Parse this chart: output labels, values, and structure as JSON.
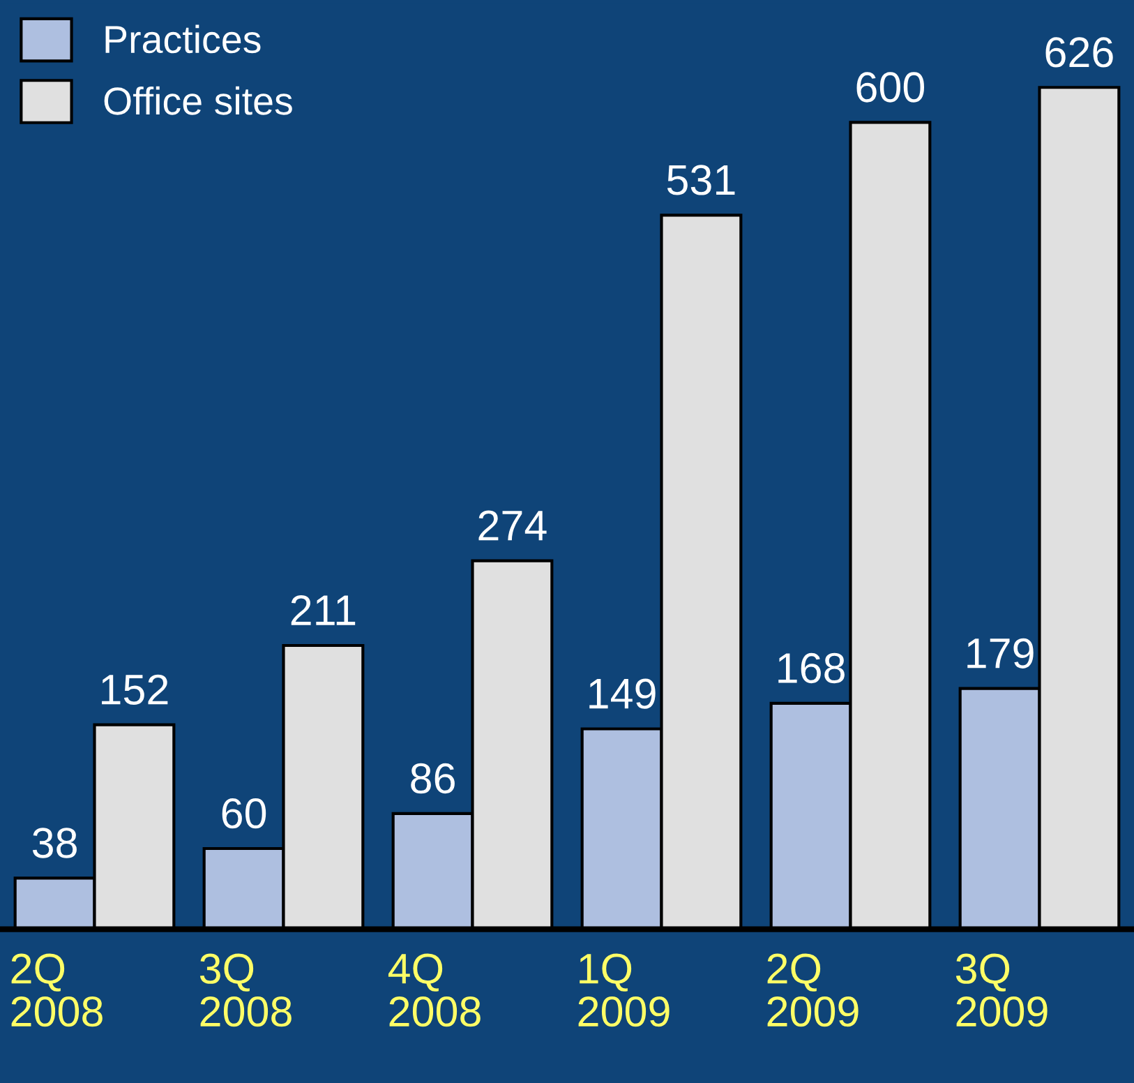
{
  "chart_data": {
    "type": "bar",
    "categories": [
      "2Q\n2008",
      "3Q\n2008",
      "4Q\n2008",
      "1Q\n2009",
      "2Q\n2009",
      "3Q\n2009"
    ],
    "series": [
      {
        "name": "Practices",
        "color": "#aebfe0",
        "values": [
          38,
          60,
          86,
          149,
          168,
          179
        ]
      },
      {
        "name": "Office sites",
        "color": "#e0e0e0",
        "values": [
          152,
          211,
          274,
          531,
          600,
          626
        ]
      }
    ],
    "data_labels": true,
    "legend": "top left",
    "grid": false,
    "tick_labels": "x"
  }
}
